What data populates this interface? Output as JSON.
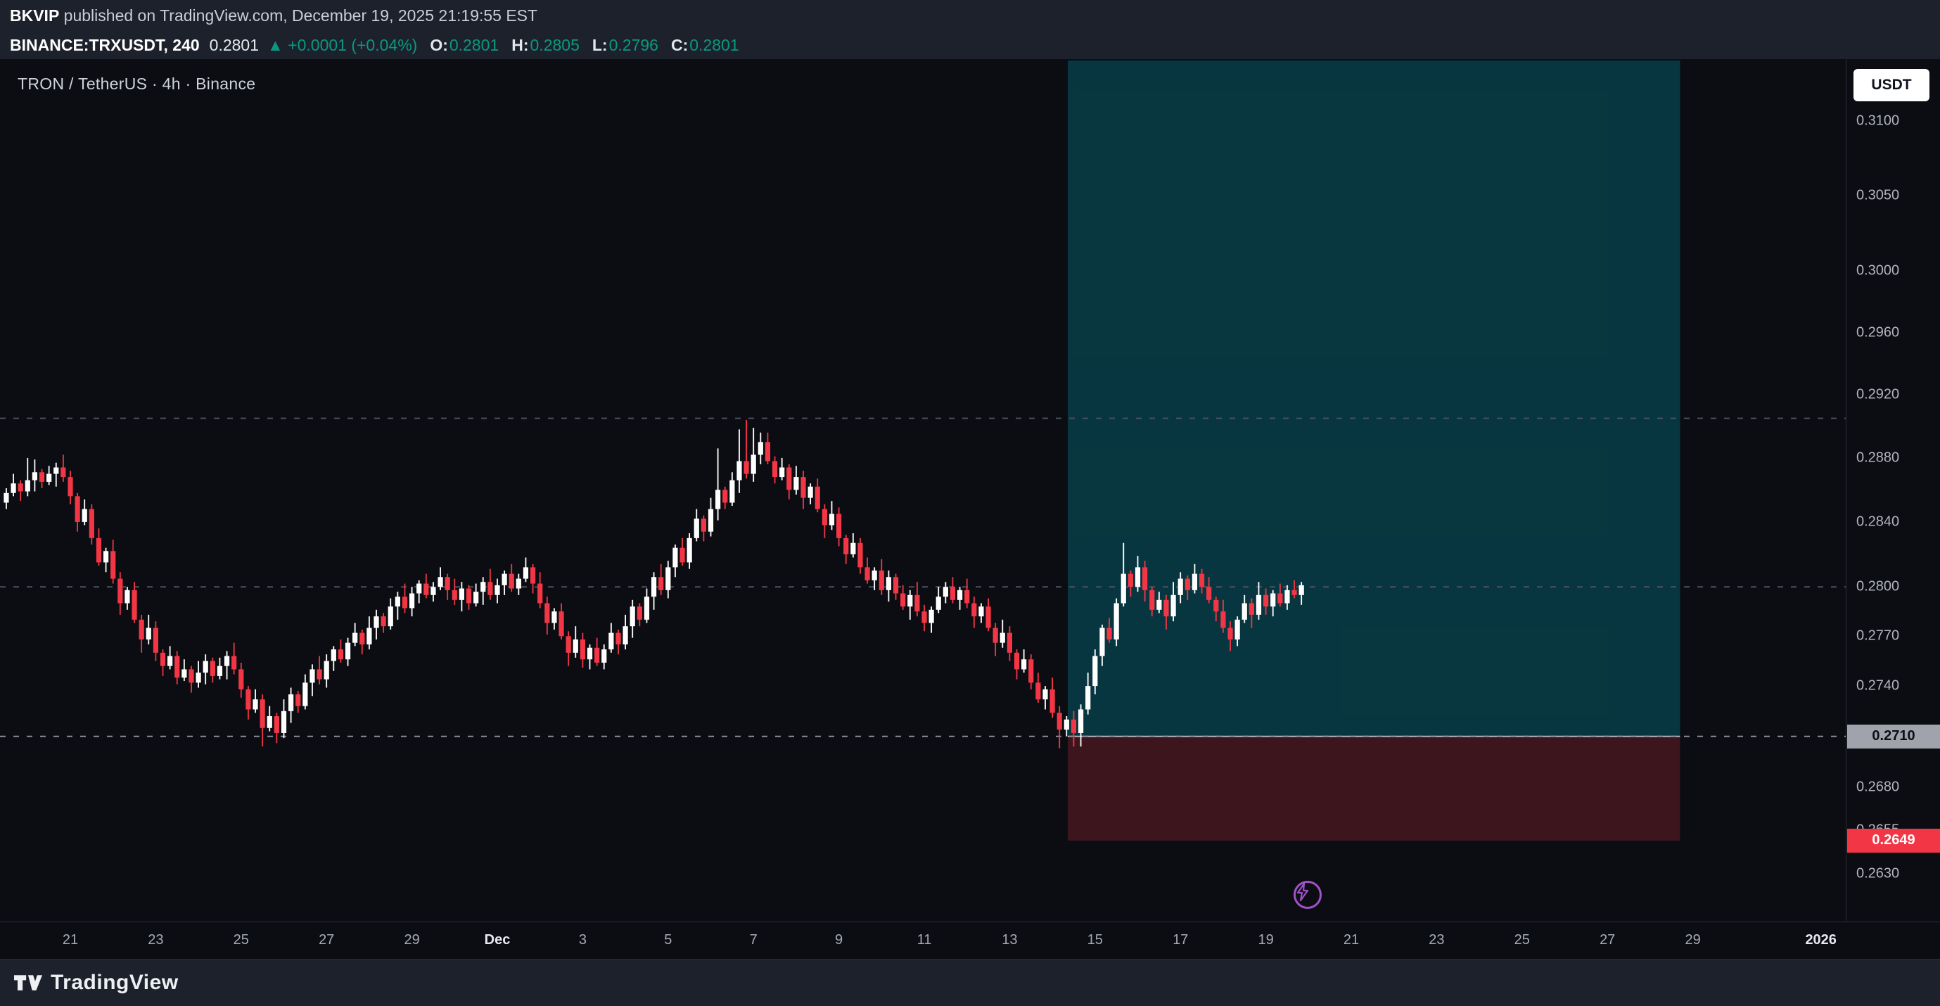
{
  "header": {
    "line1": {
      "user": "BKVIP",
      "rest": " published on TradingView.com, December 19, 2025 21:19:55 EST"
    },
    "line2": {
      "symbol": "BINANCE:TRXUSDT, 240",
      "last": "0.2801",
      "change": "▲ +0.0001 (+0.04%)",
      "o_label": "O:",
      "o": "0.2801",
      "h_label": "H:",
      "h": "0.2805",
      "l_label": "L:",
      "l": "0.2796",
      "c_label": "C:",
      "c": "0.2801"
    }
  },
  "chart": {
    "legend": "TRON / TetherUS · 4h · Binance",
    "currency_button": "USDT"
  },
  "price_axis": {
    "labels": [
      "0.3100",
      "0.3050",
      "0.3000",
      "0.2960",
      "0.2920",
      "0.2880",
      "0.2840",
      "0.2800",
      "0.2770",
      "0.2740",
      "0.2680",
      "0.2655",
      "0.2630"
    ],
    "entry_badge": "0.2710",
    "stop_badge": "0.2649"
  },
  "time_axis": {
    "labels": [
      {
        "label": "21",
        "day": 1.5
      },
      {
        "label": "23",
        "day": 3.5
      },
      {
        "label": "25",
        "day": 5.5
      },
      {
        "label": "27",
        "day": 7.5
      },
      {
        "label": "29",
        "day": 9.5
      },
      {
        "label": "Dec",
        "day": 11.5,
        "major": true
      },
      {
        "label": "3",
        "day": 13.5
      },
      {
        "label": "5",
        "day": 15.5
      },
      {
        "label": "7",
        "day": 17.5
      },
      {
        "label": "9",
        "day": 19.5
      },
      {
        "label": "11",
        "day": 21.5
      },
      {
        "label": "13",
        "day": 23.5
      },
      {
        "label": "15",
        "day": 25.5
      },
      {
        "label": "17",
        "day": 27.5
      },
      {
        "label": "19",
        "day": 29.5
      },
      {
        "label": "21",
        "day": 31.5
      },
      {
        "label": "23",
        "day": 33.5
      },
      {
        "label": "25",
        "day": 35.5
      },
      {
        "label": "27",
        "day": 37.5
      },
      {
        "label": "29",
        "day": 39.5
      },
      {
        "label": "2026",
        "day": 42.5,
        "major": true
      }
    ]
  },
  "footer": {
    "brand": "TradingView"
  },
  "chart_data": {
    "type": "candlestick",
    "title": "TRON / TetherUS · 4h · Binance",
    "symbol": "BINANCE:TRXUSDT",
    "interval": "4h",
    "scale": "log",
    "visible_price_range": [
      0.263,
      0.31
    ],
    "visible_time_range": [
      "Nov 19",
      "Jan 1 2026"
    ],
    "up_color": "#ffffff",
    "down_color": "#f23645",
    "first_open": 0.2852,
    "closes": [
      0.2858,
      0.2864,
      0.2859,
      0.2866,
      0.2871,
      0.2865,
      0.287,
      0.2874,
      0.2868,
      0.2856,
      0.284,
      0.2848,
      0.283,
      0.2815,
      0.2822,
      0.2805,
      0.279,
      0.2798,
      0.278,
      0.2768,
      0.2775,
      0.276,
      0.2752,
      0.2758,
      0.2745,
      0.275,
      0.2742,
      0.2748,
      0.2755,
      0.2746,
      0.2752,
      0.2758,
      0.275,
      0.2738,
      0.2726,
      0.2732,
      0.2715,
      0.2722,
      0.2712,
      0.2725,
      0.2735,
      0.2728,
      0.2742,
      0.275,
      0.2744,
      0.2755,
      0.2762,
      0.2756,
      0.2766,
      0.2772,
      0.2765,
      0.2775,
      0.2782,
      0.2776,
      0.2788,
      0.2794,
      0.2787,
      0.2796,
      0.2802,
      0.2795,
      0.28,
      0.2806,
      0.2798,
      0.2792,
      0.2799,
      0.279,
      0.2797,
      0.2803,
      0.2795,
      0.2801,
      0.2808,
      0.2799,
      0.2805,
      0.2812,
      0.2802,
      0.279,
      0.2778,
      0.2785,
      0.277,
      0.276,
      0.2768,
      0.2756,
      0.2763,
      0.2754,
      0.2762,
      0.2772,
      0.2765,
      0.2776,
      0.2788,
      0.278,
      0.2794,
      0.2806,
      0.2798,
      0.2812,
      0.2824,
      0.2815,
      0.283,
      0.2842,
      0.2834,
      0.2848,
      0.286,
      0.2852,
      0.2866,
      0.2878,
      0.287,
      0.2882,
      0.289,
      0.2878,
      0.2868,
      0.2874,
      0.286,
      0.2868,
      0.2855,
      0.2862,
      0.2848,
      0.2838,
      0.2845,
      0.283,
      0.282,
      0.2827,
      0.2812,
      0.2804,
      0.281,
      0.2798,
      0.2806,
      0.2796,
      0.2788,
      0.2795,
      0.2785,
      0.2778,
      0.2786,
      0.2794,
      0.28,
      0.2792,
      0.2798,
      0.279,
      0.2782,
      0.2788,
      0.2775,
      0.2766,
      0.2772,
      0.276,
      0.275,
      0.2756,
      0.2742,
      0.2732,
      0.2738,
      0.2724,
      0.2714,
      0.272,
      0.2712,
      0.2726,
      0.274,
      0.2758,
      0.2775,
      0.2768,
      0.279,
      0.2808,
      0.28,
      0.2812,
      0.2798,
      0.2786,
      0.2792,
      0.2782,
      0.2795,
      0.2805,
      0.2798,
      0.2808,
      0.28,
      0.2792,
      0.2785,
      0.2775,
      0.2768,
      0.278,
      0.279,
      0.2783,
      0.2795,
      0.2788,
      0.2796,
      0.279,
      0.2798,
      0.2795,
      0.2801
    ],
    "wick_up_pattern": [
      0.0003,
      0.0006,
      0.0002,
      0.0007,
      0.0004,
      0.0002,
      0.0005,
      0.0003,
      0.0008,
      0.0004,
      0.0002,
      0.0006
    ],
    "wick_down_pattern": [
      0.0004,
      0.0002,
      0.0006,
      0.0003,
      0.0007,
      0.0004,
      0.0002,
      0.0008,
      0.0003,
      0.0005,
      0.0006,
      0.0002
    ],
    "wick_overrides": {
      "3": {
        "h": 0.288
      },
      "4": {
        "h": 0.2879
      },
      "36": {
        "l": 0.2704
      },
      "38": {
        "l": 0.2706
      },
      "73": {
        "h": 0.2818
      },
      "100": {
        "h": 0.2886
      },
      "103": {
        "h": 0.2898
      },
      "104": {
        "h": 0.2904
      },
      "105": {
        "h": 0.2899
      },
      "106": {
        "h": 0.2896
      },
      "148": {
        "l": 0.2703
      },
      "150": {
        "l": 0.2704
      },
      "157": {
        "h": 0.2827
      }
    },
    "levels": [
      {
        "price": 0.2905,
        "style": "dashed",
        "color": "#4c5160"
      },
      {
        "price": 0.28,
        "style": "dashed",
        "color": "#4c5160"
      },
      {
        "price": 0.271,
        "style": "dashed",
        "color": "#8b8f9b"
      }
    ],
    "position_tool": {
      "kind": "long-position",
      "entry": 0.271,
      "stop": 0.2649,
      "start_day": 24.86,
      "end_day": 39.2,
      "profit_fill": "rgba(0,188,212,0.24)",
      "loss_fill": "rgba(242,54,69,0.22)",
      "entry_line_color": "#b2b5be"
    }
  }
}
